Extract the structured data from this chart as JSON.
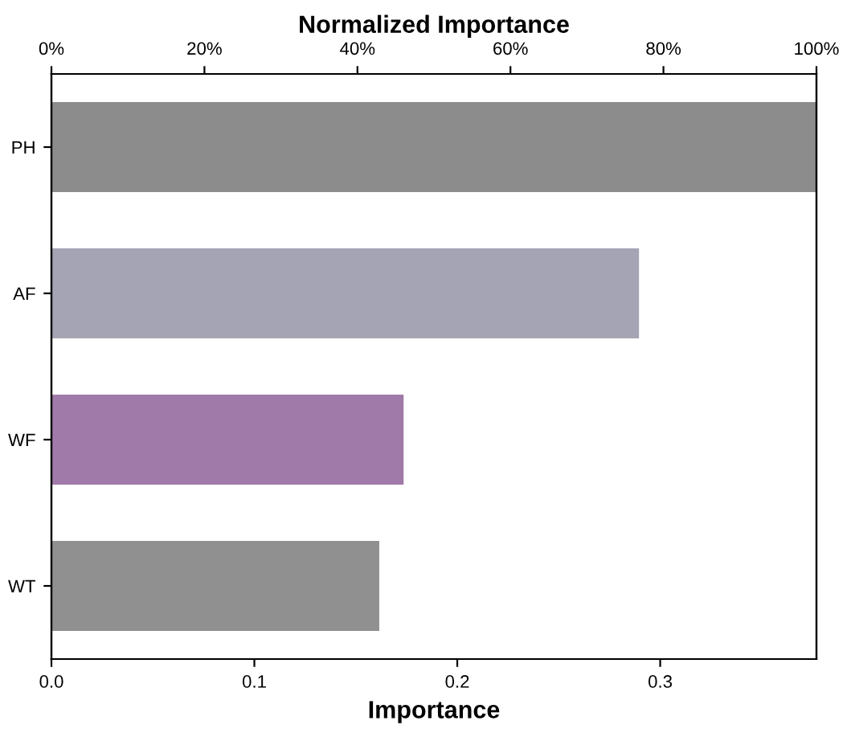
{
  "chart_data": {
    "type": "bar",
    "orientation": "horizontal",
    "xlabel": "Importance",
    "x2label": "Normalized Importance",
    "categories": [
      "PH",
      "AF",
      "WF",
      "WT"
    ],
    "values": [
      0.377,
      0.289,
      0.173,
      0.161
    ],
    "colors": [
      "#8c8c8c",
      "#a4a4b4",
      "#a07aa8",
      "#909090"
    ],
    "xlim": [
      0,
      0.377
    ],
    "xticks": [
      {
        "value": 0,
        "label": "0.0"
      },
      0.1,
      0.2,
      0.3
    ],
    "x2lim": [
      0,
      100
    ],
    "x2ticks": [
      {
        "value": 0,
        "label": "0%"
      },
      {
        "value": 20,
        "label": "20%"
      },
      {
        "value": 40,
        "label": "40%"
      },
      {
        "value": 60,
        "label": "60%"
      },
      {
        "value": 80,
        "label": "80%"
      },
      {
        "value": 100,
        "label": "100%"
      }
    ],
    "grid": false,
    "legend": false
  }
}
